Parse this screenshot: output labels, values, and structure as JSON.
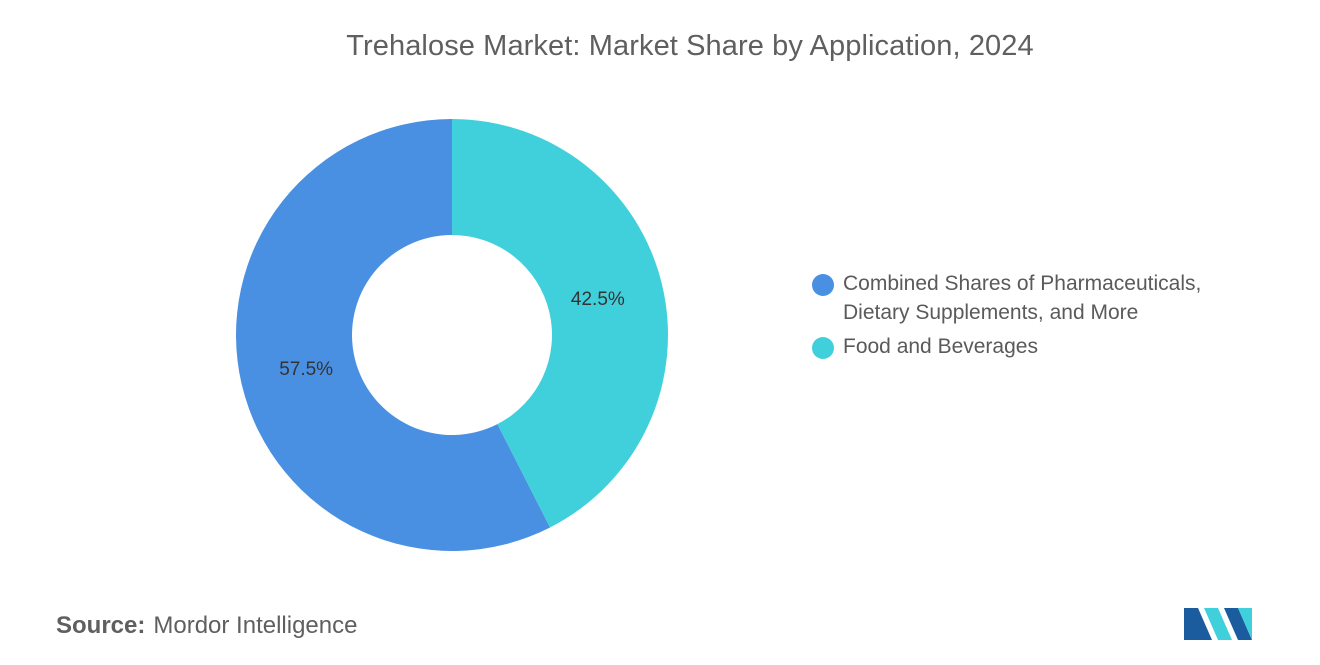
{
  "chart_data": {
    "type": "pie",
    "donut": true,
    "title": "Trehalose Market: Market Share by Application, 2024",
    "categories": [
      "Combined Shares of Pharmaceuticals, Dietary Supplements, and More",
      "Food and Beverages"
    ],
    "values": [
      57.5,
      42.5
    ],
    "data_labels": [
      "57.5%",
      "42.5%"
    ],
    "colors": [
      "#4A90E2",
      "#40D0DB"
    ],
    "legend_position": "right",
    "start_angle_deg": 0,
    "direction": "counterclockwise"
  },
  "legend": {
    "items": [
      {
        "label_line1": "Combined Shares of Pharmaceuticals,",
        "label_line2": "Dietary Supplements, and More",
        "color": "#4A90E2"
      },
      {
        "label_line1": "Food and Beverages",
        "label_line2": "",
        "color": "#40D0DB"
      }
    ]
  },
  "footer": {
    "source_label": "Source:",
    "source_value": "Mordor Intelligence"
  },
  "logo": {
    "icon": "mordor-intelligence-logo",
    "colors": [
      "#1A5C9E",
      "#40D0DB"
    ]
  }
}
